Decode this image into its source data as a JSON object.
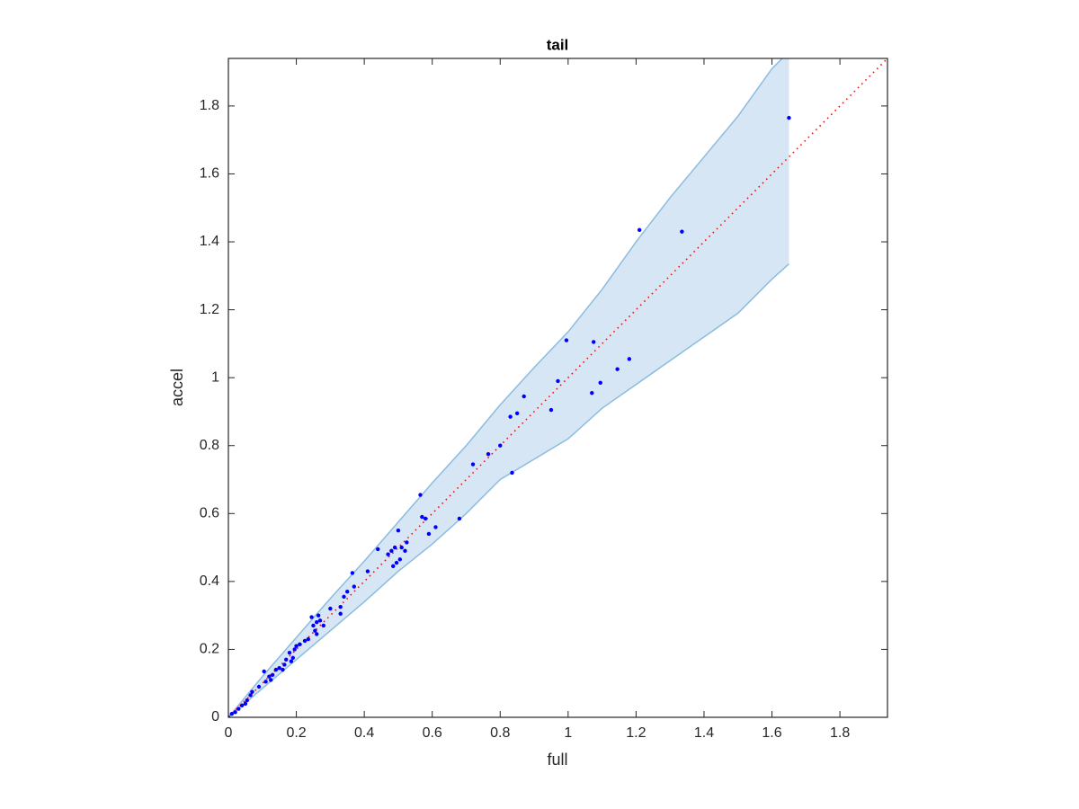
{
  "chart_data": {
    "type": "scatter",
    "title": "tail",
    "x_label": "full",
    "y_label": "accel",
    "xlim": [
      0,
      1.94
    ],
    "ylim": [
      0,
      1.94
    ],
    "xticks": [
      0,
      0.2,
      0.4,
      0.6,
      0.8,
      1,
      1.2,
      1.4,
      1.6,
      1.8
    ],
    "yticks": [
      0,
      0.2,
      0.4,
      0.6,
      0.8,
      1,
      1.2,
      1.4,
      1.6,
      1.8
    ],
    "band": {
      "color": "#d6e6f4",
      "edge_color": "#8bbcdf",
      "x": [
        0,
        0.1,
        0.2,
        0.3,
        0.4,
        0.5,
        0.6,
        0.7,
        0.8,
        0.9,
        1.0,
        1.1,
        1.2,
        1.3,
        1.4,
        1.5,
        1.6,
        1.65
      ],
      "upper": [
        0,
        0.12,
        0.235,
        0.35,
        0.46,
        0.575,
        0.69,
        0.8,
        0.92,
        1.03,
        1.135,
        1.26,
        1.4,
        1.53,
        1.65,
        1.77,
        1.91,
        1.96
      ],
      "lower": [
        0,
        0.085,
        0.17,
        0.255,
        0.34,
        0.43,
        0.51,
        0.6,
        0.7,
        0.76,
        0.82,
        0.91,
        0.98,
        1.05,
        1.12,
        1.19,
        1.29,
        1.335
      ]
    },
    "reference_line": {
      "color": "#ff0000",
      "x": [
        0,
        1.94
      ],
      "y": [
        0,
        1.94
      ]
    },
    "series": [
      {
        "color": "#0000ff",
        "x": [
          1.65,
          1.21,
          1.335,
          0.995,
          1.075,
          1.18,
          1.145,
          1.095,
          1.07,
          0.97,
          0.95,
          0.87,
          0.85,
          0.83,
          0.8,
          0.765,
          0.72,
          0.835,
          0.68,
          0.565,
          0.57,
          0.58,
          0.61,
          0.59,
          0.44,
          0.47,
          0.48,
          0.49,
          0.5,
          0.51,
          0.525,
          0.52,
          0.505,
          0.495,
          0.485,
          0.41,
          0.365,
          0.37,
          0.35,
          0.34,
          0.33,
          0.33,
          0.3,
          0.28,
          0.265,
          0.26,
          0.27,
          0.245,
          0.25,
          0.255,
          0.26,
          0.235,
          0.225,
          0.21,
          0.2,
          0.195,
          0.19,
          0.18,
          0.185,
          0.17,
          0.165,
          0.16,
          0.15,
          0.14,
          0.13,
          0.125,
          0.12,
          0.11,
          0.105,
          0.09,
          0.07,
          0.065,
          0.055,
          0.05,
          0.04,
          0.03,
          0.02,
          0.01,
          0
        ],
        "y": [
          1.765,
          1.435,
          1.43,
          1.11,
          1.105,
          1.055,
          1.025,
          0.985,
          0.955,
          0.99,
          0.905,
          0.945,
          0.895,
          0.885,
          0.8,
          0.775,
          0.745,
          0.72,
          0.585,
          0.655,
          0.59,
          0.585,
          0.56,
          0.54,
          0.495,
          0.48,
          0.49,
          0.5,
          0.55,
          0.5,
          0.515,
          0.49,
          0.465,
          0.455,
          0.445,
          0.43,
          0.425,
          0.385,
          0.37,
          0.355,
          0.325,
          0.305,
          0.32,
          0.27,
          0.3,
          0.28,
          0.285,
          0.295,
          0.27,
          0.255,
          0.245,
          0.23,
          0.225,
          0.215,
          0.21,
          0.2,
          0.175,
          0.19,
          0.165,
          0.17,
          0.155,
          0.14,
          0.145,
          0.14,
          0.125,
          0.11,
          0.12,
          0.105,
          0.135,
          0.09,
          0.075,
          0.065,
          0.05,
          0.04,
          0.035,
          0.025,
          0.015,
          0.01,
          0
        ]
      }
    ]
  }
}
